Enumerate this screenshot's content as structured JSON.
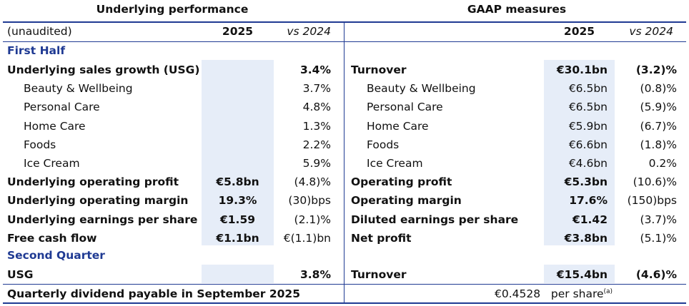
{
  "headers": {
    "left_title": "Underlying performance",
    "right_title": "GAAP measures",
    "unaudited": "(unaudited)",
    "col_2025": "2025",
    "col_vs2024": "vs 2024"
  },
  "sections": {
    "first_half": "First Half",
    "second_quarter": "Second Quarter"
  },
  "first_half_rows": [
    {
      "l_label": "Underlying sales growth (USG)",
      "l_2025": "",
      "l_vs": "3.4%",
      "r_label": "Turnover",
      "r_2025": "€30.1bn",
      "r_vs": "(3.2)%",
      "bold": true,
      "indent": false
    },
    {
      "l_label": "Beauty & Wellbeing",
      "l_2025": "",
      "l_vs": "3.7%",
      "r_label": "Beauty & Wellbeing",
      "r_2025": "€6.5bn",
      "r_vs": "(0.8)%",
      "bold": false,
      "indent": true
    },
    {
      "l_label": "Personal Care",
      "l_2025": "",
      "l_vs": "4.8%",
      "r_label": "Personal Care",
      "r_2025": "€6.5bn",
      "r_vs": "(5.9)%",
      "bold": false,
      "indent": true
    },
    {
      "l_label": "Home Care",
      "l_2025": "",
      "l_vs": "1.3%",
      "r_label": "Home Care",
      "r_2025": "€5.9bn",
      "r_vs": "(6.7)%",
      "bold": false,
      "indent": true
    },
    {
      "l_label": "Foods",
      "l_2025": "",
      "l_vs": "2.2%",
      "r_label": "Foods",
      "r_2025": "€6.6bn",
      "r_vs": "(1.8)%",
      "bold": false,
      "indent": true
    },
    {
      "l_label": "Ice Cream",
      "l_2025": "",
      "l_vs": "5.9%",
      "r_label": "Ice Cream",
      "r_2025": "€4.6bn",
      "r_vs": "0.2%",
      "bold": false,
      "indent": true
    },
    {
      "l_label": "Underlying operating profit",
      "l_2025": "€5.8bn",
      "l_vs": "(4.8)%",
      "r_label": "Operating profit",
      "r_2025": "€5.3bn",
      "r_vs": "(10.6)%",
      "bold": true,
      "indent": false,
      "vs_normal": true
    },
    {
      "l_label": "Underlying operating margin",
      "l_2025": "19.3%",
      "l_vs": "(30)bps",
      "r_label": "Operating margin",
      "r_2025": "17.6%",
      "r_vs": "(150)bps",
      "bold": true,
      "indent": false,
      "vs_normal": true
    },
    {
      "l_label": "Underlying earnings per share",
      "l_2025": "€1.59",
      "l_vs": "(2.1)%",
      "r_label": "Diluted earnings per share",
      "r_2025": "€1.42",
      "r_vs": "(3.7)%",
      "bold": true,
      "indent": false,
      "vs_normal": true
    },
    {
      "l_label": "Free cash flow",
      "l_2025": "€1.1bn",
      "l_vs": "€(1.1)bn",
      "r_label": "Net profit",
      "r_2025": "€3.8bn",
      "r_vs": "(5.1)%",
      "bold": true,
      "indent": false,
      "vs_normal": true
    }
  ],
  "second_quarter_row": {
    "l_label": "USG",
    "l_2025": "",
    "l_vs": "3.8%",
    "r_label": "Turnover",
    "r_2025": "€15.4bn",
    "r_vs": "(4.6)%"
  },
  "dividend": {
    "label": "Quarterly dividend payable in September 2025",
    "amount": "€0.4528",
    "unit": "per share",
    "footnote": "(a)"
  }
}
